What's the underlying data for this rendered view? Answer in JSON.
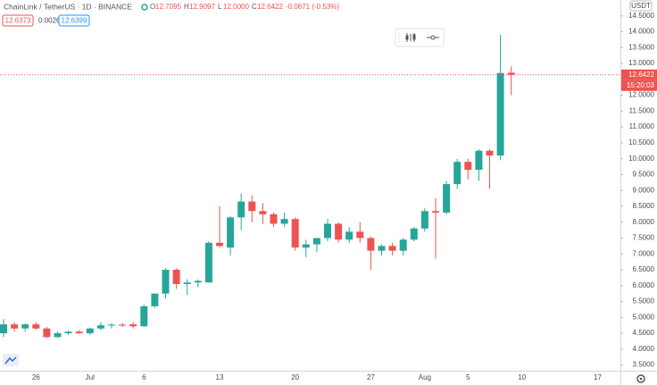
{
  "header": {
    "symbol": "ChainLink / TetherUS · 1D · BINANCE",
    "ohlc": [
      {
        "key": "O",
        "value": "12.7095"
      },
      {
        "key": "H",
        "value": "12.9097"
      },
      {
        "key": "L",
        "value": "12.0000"
      },
      {
        "key": "C",
        "value": "12.6422"
      }
    ],
    "change": "-0.0671 (-0.53%)"
  },
  "quote": {
    "bid": "12.6373",
    "spread": "0.0026",
    "ask": "12.6399"
  },
  "chart_data": {
    "type": "candlestick",
    "currency": "USDT",
    "categories": [
      null,
      null,
      null,
      "26",
      null,
      null,
      null,
      null,
      "Jul",
      null,
      null,
      null,
      null,
      "6",
      null,
      null,
      null,
      null,
      null,
      null,
      "13",
      null,
      null,
      null,
      null,
      null,
      null,
      "20",
      null,
      null,
      null,
      null,
      null,
      null,
      "27",
      null,
      null,
      null,
      null,
      "Aug",
      null,
      null,
      null,
      "5",
      null,
      null,
      null,
      null,
      "10",
      null,
      null,
      null,
      null,
      null,
      null,
      "17"
    ],
    "open": [
      4.5,
      4.78,
      4.65,
      4.78,
      4.65,
      4.38,
      4.5,
      4.55,
      4.5,
      4.65,
      4.75,
      4.77,
      4.78,
      4.72,
      5.35,
      5.75,
      6.5,
      6.05,
      6.1,
      6.1,
      7.35,
      7.2,
      8.15,
      8.65,
      8.35,
      8.25,
      7.95,
      8.1,
      7.2,
      7.3,
      7.5,
      7.95,
      7.45,
      7.7,
      7.5,
      7.1,
      7.25,
      7.1,
      7.45,
      7.8,
      8.35,
      8.3,
      9.2,
      9.9,
      9.65,
      10.25,
      10.1,
      12.7095,
      null,
      null,
      null,
      null,
      null,
      null,
      null,
      null
    ],
    "high": [
      4.95,
      4.85,
      4.82,
      4.85,
      4.7,
      4.55,
      4.58,
      4.6,
      4.68,
      4.85,
      4.82,
      4.82,
      4.85,
      5.4,
      5.75,
      6.55,
      6.55,
      6.2,
      6.2,
      7.4,
      8.5,
      8.2,
      8.9,
      8.85,
      8.6,
      8.3,
      8.3,
      8.15,
      7.45,
      7.5,
      8.1,
      8.0,
      7.85,
      8.0,
      7.55,
      7.3,
      7.35,
      7.5,
      7.85,
      8.45,
      8.75,
      9.3,
      10.0,
      10.0,
      10.3,
      10.3,
      13.9,
      12.9097,
      null,
      null,
      null,
      null,
      null,
      null,
      null,
      null
    ],
    "low": [
      4.38,
      4.55,
      4.55,
      4.6,
      4.35,
      4.35,
      4.45,
      4.48,
      4.45,
      4.6,
      4.65,
      4.7,
      4.65,
      4.7,
      5.3,
      5.6,
      5.9,
      5.7,
      5.95,
      6.1,
      7.2,
      6.95,
      7.75,
      8.0,
      7.95,
      7.85,
      7.85,
      7.1,
      6.9,
      7.05,
      7.4,
      7.35,
      7.35,
      7.35,
      6.5,
      6.95,
      6.95,
      6.95,
      7.4,
      7.7,
      6.85,
      8.25,
      9.05,
      9.35,
      9.3,
      9.05,
      9.95,
      12.0,
      null,
      null,
      null,
      null,
      null,
      null,
      null,
      null
    ],
    "close": [
      4.78,
      4.65,
      4.78,
      4.65,
      4.38,
      4.5,
      4.55,
      4.5,
      4.65,
      4.75,
      4.77,
      4.74,
      4.72,
      5.35,
      5.75,
      6.5,
      6.05,
      6.1,
      6.15,
      7.35,
      7.25,
      8.15,
      8.65,
      8.35,
      8.25,
      7.95,
      8.1,
      7.2,
      7.3,
      7.5,
      7.95,
      7.45,
      7.7,
      7.5,
      7.1,
      7.25,
      7.1,
      7.45,
      7.8,
      8.35,
      8.3,
      9.2,
      9.9,
      9.65,
      10.25,
      10.1,
      12.7,
      12.6422,
      null,
      null,
      null,
      null,
      null,
      null,
      null,
      null
    ],
    "up_color": "#26a69a",
    "down_color": "#ef5350",
    "last_price": 12.6422,
    "countdown": "15:20:03",
    "ylim": [
      3.32,
      15.0
    ],
    "yticks": [
      {
        "value": 3.5,
        "label": "3.5000"
      },
      {
        "value": 4,
        "label": "4.0000"
      },
      {
        "value": 4.5,
        "label": "4.5000"
      },
      {
        "value": 5,
        "label": "5.0000"
      },
      {
        "value": 5.5,
        "label": "5.5000"
      },
      {
        "value": 6,
        "label": "6.0000"
      },
      {
        "value": 6.5,
        "label": "6.5000"
      },
      {
        "value": 7,
        "label": "7.0000"
      },
      {
        "value": 7.5,
        "label": "7.5000"
      },
      {
        "value": 8,
        "label": "8.0000"
      },
      {
        "value": 8.5,
        "label": "8.5000"
      },
      {
        "value": 9,
        "label": "9.0000"
      },
      {
        "value": 9.5,
        "label": "9.5000"
      },
      {
        "value": 10,
        "label": "10.0000"
      },
      {
        "value": 10.5,
        "label": "10.5000"
      },
      {
        "value": 11,
        "label": "11.0000"
      },
      {
        "value": 11.5,
        "label": "11.5000"
      },
      {
        "value": 12,
        "label": "12.0000"
      },
      {
        "value": 12.5,
        "label": "12.5000"
      },
      {
        "value": 13,
        "label": "13.0000"
      },
      {
        "value": 13.5,
        "label": "13.5000"
      },
      {
        "value": 14,
        "label": "14.0000"
      },
      {
        "value": 14.5,
        "label": "14.5000"
      }
    ]
  }
}
